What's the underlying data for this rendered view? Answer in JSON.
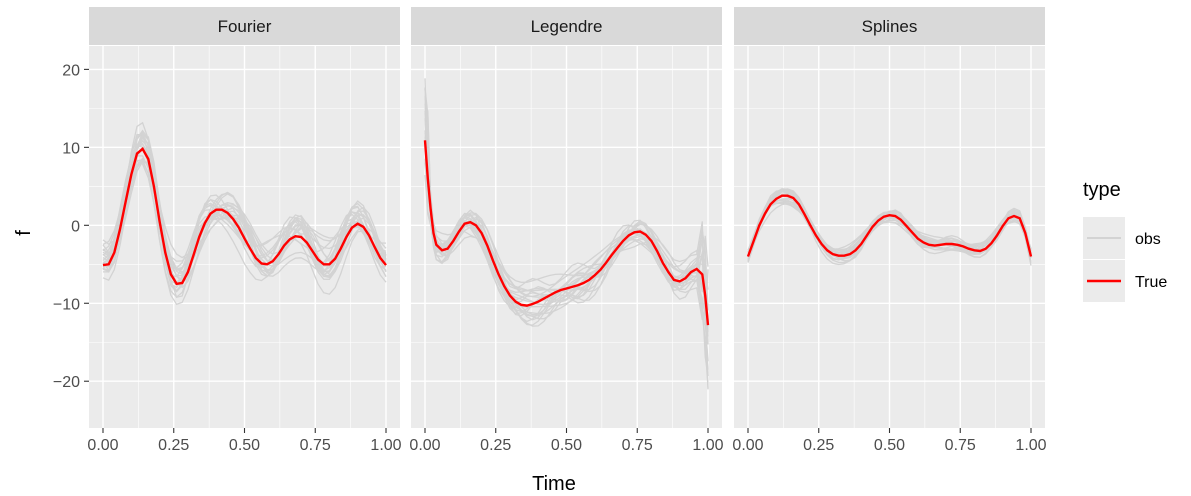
{
  "chart_data": {
    "type": "line",
    "facet_labels": [
      "Fourier",
      "Legendre",
      "Splines"
    ],
    "xlabel": "Time",
    "ylabel": "f",
    "xlim": [
      0,
      1
    ],
    "ylim": [
      -26,
      23
    ],
    "x_ticks": [
      "0.00",
      "0.25",
      "0.50",
      "0.75",
      "1.00"
    ],
    "y_ticks": [
      "20",
      "10",
      "0",
      "−10",
      "−20"
    ],
    "y_tick_values": [
      20,
      10,
      0,
      -10,
      -20
    ],
    "grid": true,
    "legend": {
      "title": "type",
      "position": "right",
      "entries": [
        {
          "label": "obs",
          "color": "#d3d3d3"
        },
        {
          "label": "True",
          "color": "#ff0000"
        }
      ]
    },
    "colors": {
      "panel_bg": "#ebebeb",
      "strip_bg": "#d9d9d9",
      "grid": "#ffffff",
      "obs": "#d3d3d3",
      "true": "#ff0000"
    },
    "true_curves": {
      "Fourier": [
        [
          0,
          -5.1
        ],
        [
          0.02,
          -5
        ],
        [
          0.04,
          -3.5
        ],
        [
          0.06,
          -0.5
        ],
        [
          0.08,
          3
        ],
        [
          0.1,
          6.5
        ],
        [
          0.12,
          9.2
        ],
        [
          0.14,
          9.8
        ],
        [
          0.16,
          8.5
        ],
        [
          0.18,
          5
        ],
        [
          0.2,
          0.5
        ],
        [
          0.22,
          -3.5
        ],
        [
          0.24,
          -6.3
        ],
        [
          0.26,
          -7.5
        ],
        [
          0.28,
          -7.4
        ],
        [
          0.3,
          -6
        ],
        [
          0.32,
          -3.8
        ],
        [
          0.34,
          -1.5
        ],
        [
          0.36,
          0.3
        ],
        [
          0.38,
          1.5
        ],
        [
          0.4,
          2
        ],
        [
          0.42,
          2
        ],
        [
          0.44,
          1.6
        ],
        [
          0.46,
          0.8
        ],
        [
          0.48,
          -0.3
        ],
        [
          0.5,
          -1.7
        ],
        [
          0.52,
          -3
        ],
        [
          0.54,
          -4.2
        ],
        [
          0.56,
          -4.9
        ],
        [
          0.58,
          -5
        ],
        [
          0.6,
          -4.6
        ],
        [
          0.62,
          -3.7
        ],
        [
          0.64,
          -2.6
        ],
        [
          0.66,
          -1.8
        ],
        [
          0.68,
          -1.4
        ],
        [
          0.7,
          -1.5
        ],
        [
          0.72,
          -2.2
        ],
        [
          0.74,
          -3.3
        ],
        [
          0.76,
          -4.4
        ],
        [
          0.78,
          -5
        ],
        [
          0.8,
          -5
        ],
        [
          0.82,
          -4.3
        ],
        [
          0.84,
          -3
        ],
        [
          0.86,
          -1.5
        ],
        [
          0.88,
          -0.3
        ],
        [
          0.9,
          0.2
        ],
        [
          0.92,
          -0.2
        ],
        [
          0.94,
          -1.3
        ],
        [
          0.96,
          -2.8
        ],
        [
          0.98,
          -4.2
        ],
        [
          1,
          -5.1
        ]
      ],
      "Legendre": [
        [
          0,
          10.9
        ],
        [
          0.01,
          6
        ],
        [
          0.02,
          2
        ],
        [
          0.03,
          -1
        ],
        [
          0.04,
          -2.5
        ],
        [
          0.06,
          -3.2
        ],
        [
          0.08,
          -3
        ],
        [
          0.1,
          -2
        ],
        [
          0.12,
          -0.8
        ],
        [
          0.14,
          0.2
        ],
        [
          0.16,
          0.4
        ],
        [
          0.18,
          0
        ],
        [
          0.2,
          -1
        ],
        [
          0.22,
          -2.6
        ],
        [
          0.24,
          -4.5
        ],
        [
          0.26,
          -6.3
        ],
        [
          0.28,
          -7.8
        ],
        [
          0.3,
          -9
        ],
        [
          0.32,
          -9.8
        ],
        [
          0.34,
          -10.2
        ],
        [
          0.36,
          -10.3
        ],
        [
          0.38,
          -10.1
        ],
        [
          0.4,
          -9.8
        ],
        [
          0.42,
          -9.4
        ],
        [
          0.44,
          -9
        ],
        [
          0.46,
          -8.6
        ],
        [
          0.48,
          -8.3
        ],
        [
          0.5,
          -8.1
        ],
        [
          0.52,
          -7.9
        ],
        [
          0.54,
          -7.7
        ],
        [
          0.56,
          -7.4
        ],
        [
          0.58,
          -7
        ],
        [
          0.6,
          -6.4
        ],
        [
          0.62,
          -5.7
        ],
        [
          0.64,
          -4.8
        ],
        [
          0.66,
          -3.8
        ],
        [
          0.68,
          -2.9
        ],
        [
          0.7,
          -2
        ],
        [
          0.72,
          -1.3
        ],
        [
          0.74,
          -0.9
        ],
        [
          0.76,
          -0.8
        ],
        [
          0.78,
          -1.2
        ],
        [
          0.8,
          -2
        ],
        [
          0.82,
          -3.3
        ],
        [
          0.84,
          -4.8
        ],
        [
          0.86,
          -6
        ],
        [
          0.88,
          -7
        ],
        [
          0.9,
          -7.2
        ],
        [
          0.92,
          -6.8
        ],
        [
          0.94,
          -6
        ],
        [
          0.96,
          -5.6
        ],
        [
          0.98,
          -6.3
        ],
        [
          0.99,
          -9
        ],
        [
          1,
          -12.8
        ]
      ],
      "Splines": [
        [
          0,
          -4
        ],
        [
          0.02,
          -2
        ],
        [
          0.04,
          0
        ],
        [
          0.06,
          1.5
        ],
        [
          0.08,
          2.7
        ],
        [
          0.1,
          3.4
        ],
        [
          0.12,
          3.8
        ],
        [
          0.14,
          3.8
        ],
        [
          0.16,
          3.5
        ],
        [
          0.18,
          2.7
        ],
        [
          0.2,
          1.4
        ],
        [
          0.22,
          0
        ],
        [
          0.24,
          -1.3
        ],
        [
          0.26,
          -2.4
        ],
        [
          0.28,
          -3.2
        ],
        [
          0.3,
          -3.7
        ],
        [
          0.32,
          -3.9
        ],
        [
          0.34,
          -3.9
        ],
        [
          0.36,
          -3.7
        ],
        [
          0.38,
          -3.2
        ],
        [
          0.4,
          -2.4
        ],
        [
          0.42,
          -1.3
        ],
        [
          0.44,
          -0.2
        ],
        [
          0.46,
          0.6
        ],
        [
          0.48,
          1.1
        ],
        [
          0.5,
          1.3
        ],
        [
          0.52,
          1.2
        ],
        [
          0.54,
          0.7
        ],
        [
          0.56,
          -0.1
        ],
        [
          0.58,
          -0.9
        ],
        [
          0.6,
          -1.7
        ],
        [
          0.62,
          -2.2
        ],
        [
          0.64,
          -2.5
        ],
        [
          0.66,
          -2.6
        ],
        [
          0.68,
          -2.5
        ],
        [
          0.7,
          -2.4
        ],
        [
          0.72,
          -2.4
        ],
        [
          0.74,
          -2.5
        ],
        [
          0.76,
          -2.7
        ],
        [
          0.78,
          -3
        ],
        [
          0.8,
          -3.2
        ],
        [
          0.82,
          -3.3
        ],
        [
          0.84,
          -3
        ],
        [
          0.86,
          -2.3
        ],
        [
          0.88,
          -1.3
        ],
        [
          0.9,
          -0.1
        ],
        [
          0.92,
          0.9
        ],
        [
          0.94,
          1.2
        ],
        [
          0.96,
          0.9
        ],
        [
          0.98,
          -1
        ],
        [
          1,
          -4
        ]
      ]
    }
  }
}
